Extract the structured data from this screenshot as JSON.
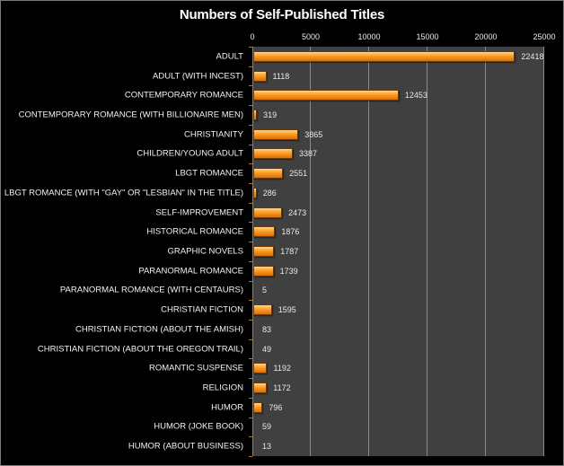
{
  "chart_data": {
    "type": "bar",
    "orientation": "horizontal",
    "title": "Numbers of Self-Published Titles",
    "xlabel": "",
    "ylabel": "",
    "xlim": [
      0,
      25000
    ],
    "x_ticks": [
      "0",
      "5000",
      "10000",
      "15000",
      "20000",
      "25000"
    ],
    "x_axis_position": "top",
    "grid": true,
    "legend": null,
    "data_labels": true,
    "categories": [
      "ADULT",
      "ADULT (WITH INCEST)",
      "CONTEMPORARY ROMANCE",
      "CONTEMPORARY ROMANCE (WITH BILLIONAIRE MEN)",
      "CHRISTIANITY",
      "CHILDREN/YOUNG ADULT",
      "LBGT ROMANCE",
      "LBGT ROMANCE (WITH \"GAY\" OR \"LESBIAN\" IN THE TITLE)",
      "SELF-IMPROVEMENT",
      "HISTORICAL ROMANCE",
      "GRAPHIC NOVELS",
      "PARANORMAL ROMANCE",
      "PARANORMAL ROMANCE (WITH CENTAURS)",
      "CHRISTIAN FICTION",
      "CHRISTIAN FICTION (ABOUT THE AMISH)",
      "CHRISTIAN FICTION (ABOUT THE OREGON TRAIL)",
      "ROMANTIC SUSPENSE",
      "RELIGION",
      "HUMOR",
      "HUMOR (JOKE BOOK)",
      "HUMOR (ABOUT BUSINESS)"
    ],
    "values": [
      22418,
      1118,
      12453,
      319,
      3865,
      3387,
      2551,
      286,
      2473,
      1876,
      1787,
      1739,
      5,
      1595,
      83,
      49,
      1192,
      1172,
      796,
      59,
      13
    ],
    "colors": {
      "bar": "#f7941d",
      "plot_background": "#404040",
      "background": "#000000",
      "gridline": "#8a8a8a"
    }
  }
}
